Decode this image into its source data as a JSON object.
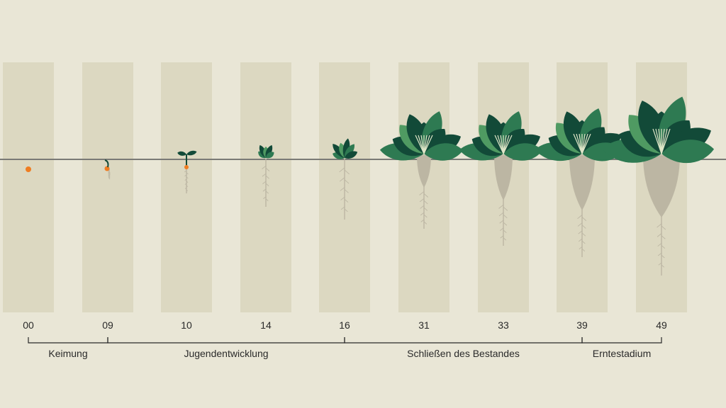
{
  "colors": {
    "background": "#e9e6d6",
    "column": "#dcd8c1",
    "ground_line": "#7a7a76",
    "seed": "#ef7d22",
    "root": "#bcb6a3",
    "leaf_dark": "#124a38",
    "leaf_mid": "#2e7a52",
    "leaf_light": "#4f9a62",
    "bracket": "#2a2a2a"
  },
  "stages": [
    {
      "code": "00"
    },
    {
      "code": "09"
    },
    {
      "code": "10"
    },
    {
      "code": "14"
    },
    {
      "code": "16"
    },
    {
      "code": "31"
    },
    {
      "code": "33"
    },
    {
      "code": "39"
    },
    {
      "code": "49"
    }
  ],
  "phases": [
    {
      "label": "Keimung",
      "from": 0,
      "to": 1
    },
    {
      "label": "Jugendentwicklung",
      "from": 1,
      "to": 4
    },
    {
      "label": "Schließen des Bestandes",
      "from": 4,
      "to": 7
    },
    {
      "label": "Erntestadium",
      "from": 7,
      "to": 8
    }
  ]
}
